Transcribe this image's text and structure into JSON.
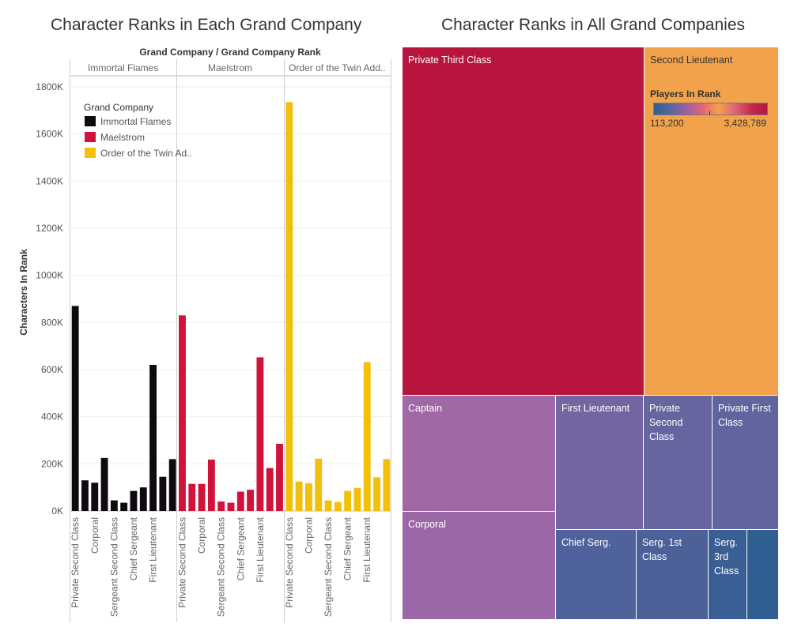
{
  "chart_data": [
    {
      "type": "bar",
      "title": "Character Ranks in Each Grand Company",
      "header": "Grand Company / Grand Company Rank",
      "ylabel": "Characters In Rank",
      "ylim": [
        0,
        1850000
      ],
      "yticks": [
        0,
        200000,
        400000,
        600000,
        800000,
        1000000,
        1200000,
        1400000,
        1600000,
        1800000
      ],
      "ytick_labels": [
        "0K",
        "200K",
        "400K",
        "600K",
        "800K",
        "1000K",
        "1200K",
        "1400K",
        "1600K",
        "1800K"
      ],
      "panels": [
        "Immortal Flames",
        "Maelstrom",
        "Order of the Twin Add.."
      ],
      "x_labels": [
        "Private Second Class",
        "Corporal",
        "Sergeant Second Class",
        "Chief Sergeant",
        "First Lieutenant"
      ],
      "legend": {
        "title": "Grand Company",
        "items": [
          "Immortal Flames",
          "Maelstrom",
          "Order of the Twin Ad.."
        ],
        "placement": "top-left"
      },
      "colors": [
        "#0f0a10",
        "#d0133a",
        "#f2c00b"
      ],
      "series": [
        {
          "name": "Immortal Flames",
          "values": [
            870000,
            130000,
            120000,
            225000,
            45000,
            35000,
            85000,
            100000,
            620000,
            145000,
            220000
          ]
        },
        {
          "name": "Maelstrom",
          "values": [
            830000,
            115000,
            115000,
            218000,
            40000,
            35000,
            82000,
            90000,
            652000,
            182000,
            285000
          ]
        },
        {
          "name": "Order of the Twin Adder",
          "values": [
            1735000,
            125000,
            118000,
            222000,
            45000,
            38000,
            85000,
            98000,
            632000,
            143000,
            220000
          ]
        }
      ]
    },
    {
      "type": "treemap",
      "title": "Character Ranks in All Grand Companies",
      "legend": {
        "title": "Players In Rank",
        "min_label": "113,200",
        "max_label": "3,428,789"
      },
      "tiles": [
        {
          "label": "Private Third Class",
          "color": "#b7153e"
        },
        {
          "label": "Second Lieutenant",
          "color": "#f1a24b"
        },
        {
          "label": "Captain",
          "color": "#a068a5"
        },
        {
          "label": "Corporal",
          "color": "#9b67a6"
        },
        {
          "label": "First Lieutenant",
          "color": "#7465a1"
        },
        {
          "label": "Private Second Class",
          "color": "#6765a0"
        },
        {
          "label": "Private First Class",
          "color": "#60659e"
        },
        {
          "label": "Chief Serg.",
          "color": "#50629b"
        },
        {
          "label": "Serg. 1st Class",
          "color": "#4b6198"
        },
        {
          "label": "Serg. 3rd Class",
          "color": "#3a5f94"
        },
        {
          "label": "",
          "color": "#315e91"
        }
      ]
    }
  ]
}
